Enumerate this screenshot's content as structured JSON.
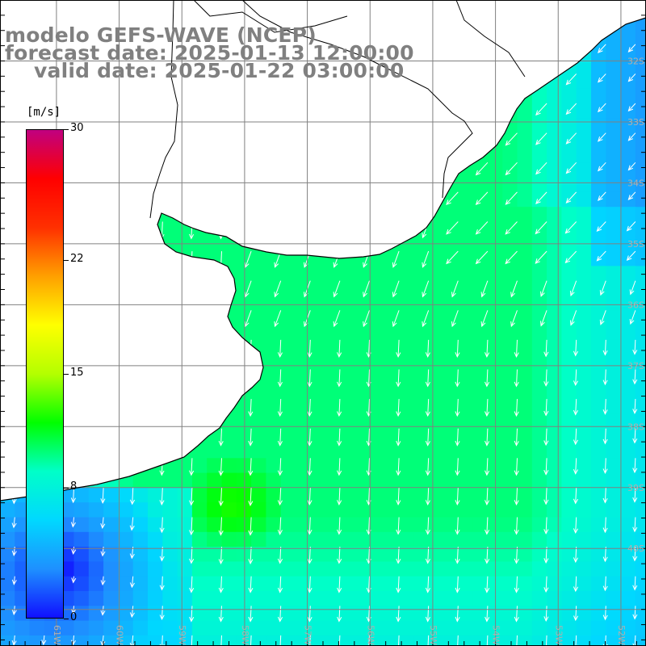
{
  "header": {
    "title": "modelo GEFS-WAVE (NCEP)",
    "forecast": "forecast date: 2025-01-13 12:00:00",
    "valid": "valid date: 2025-01-22 03:00:00"
  },
  "colorbar": {
    "unit": "[m/s]",
    "ticks": [
      "30",
      "22",
      "15",
      "8",
      "0"
    ],
    "tick_values": [
      30,
      22,
      15,
      8,
      0
    ],
    "min": 0,
    "max": 30,
    "colors": [
      "#1010ff",
      "#1e90ff",
      "#00d8ff",
      "#00ffc8",
      "#00ff00",
      "#b4ff00",
      "#ffff00",
      "#ffa000",
      "#ff3000",
      "#ff0000",
      "#c00080"
    ]
  },
  "map": {
    "lat_labels": [
      "32S",
      "33S",
      "34S",
      "35S",
      "36S",
      "37S",
      "38S",
      "39S",
      "40S"
    ],
    "lon_labels": [
      "61W",
      "60W",
      "59W",
      "58W",
      "57W",
      "56W",
      "55W",
      "54W",
      "53W",
      "52W"
    ],
    "lon_range": [
      -61.9,
      -51.6
    ],
    "lat_range": [
      -41.6,
      -31.0
    ],
    "grid_lon_step": 1,
    "grid_lat_step": 1,
    "land_color": "#ffffff",
    "arrow_color": "#ffffff",
    "coast_color": "#000000",
    "grid_color": "#808080"
  }
}
